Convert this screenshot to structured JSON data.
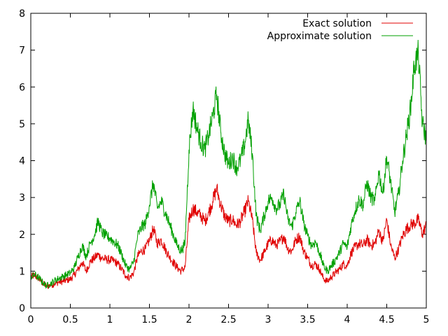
{
  "chart_data": {
    "type": "line",
    "title": "",
    "xlabel": "",
    "ylabel": "",
    "xlim": [
      0,
      5
    ],
    "ylim": [
      0,
      8
    ],
    "xticks": [
      0,
      0.5,
      1,
      1.5,
      2,
      2.5,
      3,
      3.5,
      4,
      4.5,
      5
    ],
    "xtick_labels": [
      "0",
      "0.5",
      "1",
      "1.5",
      "2",
      "2.5",
      "3",
      "3.5",
      "4",
      "4.5",
      "5"
    ],
    "yticks": [
      0,
      1,
      2,
      3,
      4,
      5,
      6,
      7,
      8
    ],
    "ytick_labels": [
      "0",
      "1",
      "2",
      "3",
      "4",
      "5",
      "6",
      "7",
      "8"
    ],
    "grid": false,
    "legend_position": "top-right",
    "series": [
      {
        "name": "Exact solution",
        "color": "#e00000",
        "x": [
          0,
          0.05,
          0.1,
          0.15,
          0.2,
          0.25,
          0.3,
          0.35,
          0.4,
          0.45,
          0.5,
          0.55,
          0.6,
          0.65,
          0.7,
          0.75,
          0.8,
          0.85,
          0.9,
          0.95,
          1.0,
          1.05,
          1.1,
          1.15,
          1.2,
          1.25,
          1.3,
          1.35,
          1.4,
          1.45,
          1.5,
          1.55,
          1.6,
          1.65,
          1.7,
          1.75,
          1.8,
          1.85,
          1.9,
          1.95,
          2.0,
          2.05,
          2.1,
          2.15,
          2.2,
          2.25,
          2.3,
          2.35,
          2.4,
          2.45,
          2.5,
          2.55,
          2.6,
          2.65,
          2.7,
          2.75,
          2.8,
          2.85,
          2.9,
          2.95,
          3.0,
          3.05,
          3.1,
          3.15,
          3.2,
          3.25,
          3.3,
          3.35,
          3.4,
          3.45,
          3.5,
          3.55,
          3.6,
          3.65,
          3.7,
          3.75,
          3.8,
          3.85,
          3.9,
          3.95,
          4.0,
          4.05,
          4.1,
          4.15,
          4.2,
          4.25,
          4.3,
          4.35,
          4.4,
          4.45,
          4.5,
          4.55,
          4.6,
          4.65,
          4.7,
          4.75,
          4.8,
          4.85,
          4.9,
          4.95,
          5.0
        ],
        "y": [
          0.85,
          0.88,
          0.8,
          0.68,
          0.58,
          0.62,
          0.66,
          0.7,
          0.72,
          0.75,
          0.78,
          0.9,
          1.05,
          1.25,
          1.0,
          1.25,
          1.35,
          1.45,
          1.35,
          1.32,
          1.3,
          1.28,
          1.2,
          1.05,
          0.88,
          0.82,
          0.95,
          1.4,
          1.55,
          1.6,
          1.85,
          2.15,
          1.75,
          1.85,
          1.6,
          1.4,
          1.25,
          1.1,
          1.0,
          1.1,
          2.4,
          2.7,
          2.6,
          2.5,
          2.35,
          2.6,
          2.9,
          3.25,
          2.8,
          2.5,
          2.35,
          2.4,
          2.25,
          2.35,
          2.6,
          2.9,
          2.4,
          1.5,
          1.3,
          1.5,
          1.75,
          1.85,
          1.7,
          1.8,
          1.95,
          1.6,
          1.55,
          1.85,
          1.95,
          1.55,
          1.35,
          1.15,
          1.2,
          1.05,
          0.8,
          0.72,
          0.85,
          0.95,
          1.05,
          1.2,
          1.15,
          1.5,
          1.65,
          1.75,
          1.7,
          1.85,
          1.7,
          1.75,
          2.1,
          1.8,
          2.4,
          1.7,
          1.35,
          1.6,
          1.95,
          2.15,
          2.25,
          2.3,
          2.4,
          2.0,
          2.25
        ]
      },
      {
        "name": "Approximate solution",
        "color": "#00a000",
        "x": [
          0,
          0.05,
          0.1,
          0.15,
          0.2,
          0.25,
          0.3,
          0.35,
          0.4,
          0.45,
          0.5,
          0.55,
          0.6,
          0.65,
          0.7,
          0.75,
          0.8,
          0.85,
          0.9,
          0.95,
          1.0,
          1.05,
          1.1,
          1.15,
          1.2,
          1.25,
          1.3,
          1.35,
          1.4,
          1.45,
          1.5,
          1.55,
          1.6,
          1.65,
          1.7,
          1.75,
          1.8,
          1.85,
          1.9,
          1.95,
          2.0,
          2.05,
          2.1,
          2.15,
          2.2,
          2.25,
          2.3,
          2.35,
          2.4,
          2.45,
          2.5,
          2.55,
          2.6,
          2.65,
          2.7,
          2.75,
          2.8,
          2.85,
          2.9,
          2.95,
          3.0,
          3.05,
          3.1,
          3.15,
          3.2,
          3.25,
          3.3,
          3.35,
          3.4,
          3.45,
          3.5,
          3.55,
          3.6,
          3.65,
          3.7,
          3.75,
          3.8,
          3.85,
          3.9,
          3.95,
          4.0,
          4.05,
          4.1,
          4.15,
          4.2,
          4.25,
          4.3,
          4.35,
          4.4,
          4.45,
          4.5,
          4.55,
          4.6,
          4.65,
          4.7,
          4.75,
          4.8,
          4.85,
          4.9,
          4.95,
          5.0
        ],
        "y": [
          0.85,
          0.9,
          0.82,
          0.7,
          0.6,
          0.66,
          0.74,
          0.8,
          0.85,
          0.9,
          0.95,
          1.1,
          1.4,
          1.7,
          1.4,
          1.75,
          1.95,
          2.35,
          2.05,
          1.95,
          1.9,
          1.8,
          1.7,
          1.45,
          1.15,
          1.05,
          1.25,
          1.95,
          2.2,
          2.3,
          2.8,
          3.4,
          2.7,
          2.9,
          2.6,
          2.3,
          2.0,
          1.7,
          1.55,
          1.75,
          4.3,
          5.4,
          4.9,
          4.5,
          4.3,
          4.7,
          5.2,
          5.8,
          4.8,
          4.2,
          3.9,
          4.1,
          3.8,
          4.0,
          4.4,
          5.1,
          4.2,
          2.5,
          2.1,
          2.5,
          2.9,
          3.0,
          2.7,
          2.8,
          3.1,
          2.4,
          2.2,
          2.6,
          2.9,
          2.3,
          1.95,
          1.7,
          1.8,
          1.5,
          1.15,
          1.0,
          1.15,
          1.3,
          1.5,
          1.75,
          1.65,
          2.25,
          2.65,
          2.95,
          2.8,
          3.4,
          3.0,
          2.9,
          3.7,
          3.1,
          4.1,
          3.4,
          2.6,
          3.1,
          4.0,
          4.7,
          5.4,
          6.6,
          6.9,
          5.0,
          4.6
        ]
      }
    ]
  }
}
